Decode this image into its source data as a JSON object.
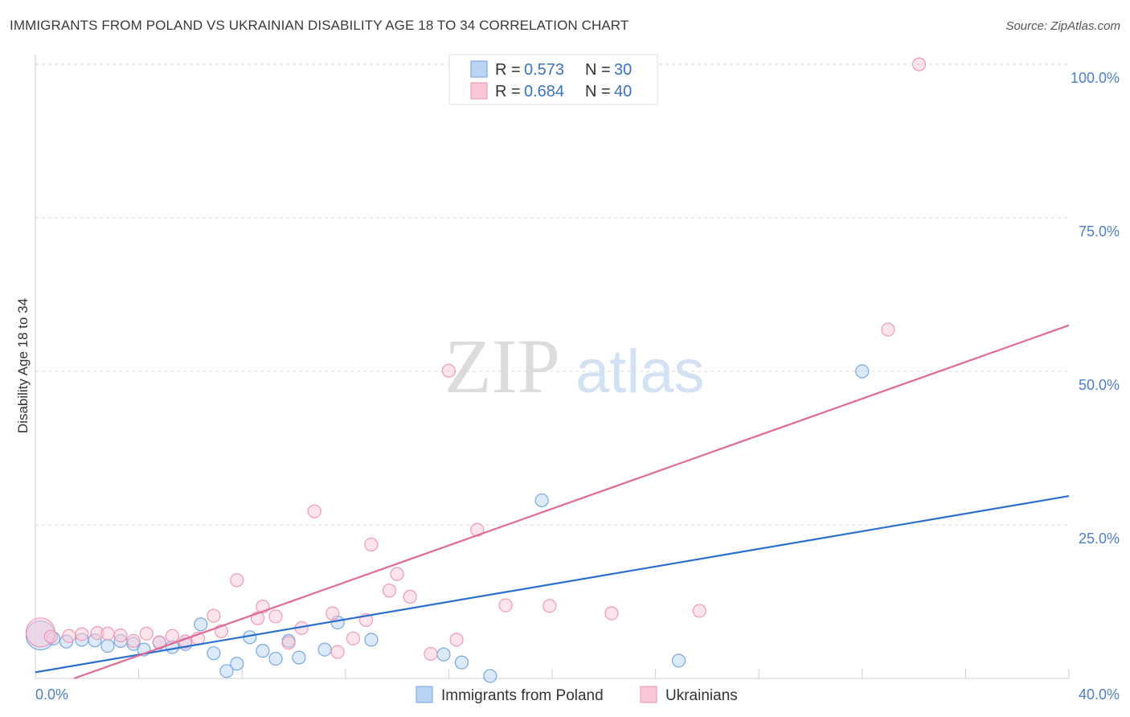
{
  "header": {
    "title": "IMMIGRANTS FROM POLAND VS UKRAINIAN DISABILITY AGE 18 TO 34 CORRELATION CHART",
    "source": "Source: ZipAtlas.com"
  },
  "watermark": {
    "zip": "ZIP",
    "atlas": "atlas"
  },
  "legend_top": [
    {
      "r_label": "R = ",
      "r_value": "0.573",
      "n_label": "N = ",
      "n_value": "30",
      "color": "#a9c8f0"
    },
    {
      "r_label": "R = ",
      "r_value": "0.684",
      "n_label": "N = ",
      "n_value": "40",
      "color": "#f7b9cc"
    }
  ],
  "legend_bottom": [
    {
      "label": "Immigrants from Poland",
      "color": "#a9c8f0"
    },
    {
      "label": "Ukrainians",
      "color": "#f7b9cc"
    }
  ],
  "chart_data": {
    "type": "scatter",
    "xlabel": "",
    "ylabel": "Disability Age 18 to 34",
    "xlim": [
      0,
      40
    ],
    "ylim": [
      0,
      100
    ],
    "x_ticks": [
      "0.0%",
      "40.0%"
    ],
    "y_ticks": [
      {
        "value": 25,
        "label": "25.0%"
      },
      {
        "value": 50,
        "label": "50.0%"
      },
      {
        "value": 75,
        "label": "75.0%"
      },
      {
        "value": 100,
        "label": "100.0%"
      }
    ],
    "grid": true,
    "series": [
      {
        "name": "Immigrants from Poland",
        "color": "#6a9fe0",
        "fill": "#b9d3f3",
        "trend": {
          "x": [
            0,
            40
          ],
          "y": [
            1.0,
            29.7
          ],
          "color": "#2a6fd0"
        },
        "points": [
          {
            "x": 0.2,
            "y": 7.0,
            "big": true
          },
          {
            "x": 0.7,
            "y": 6.5
          },
          {
            "x": 1.2,
            "y": 6.0
          },
          {
            "x": 1.8,
            "y": 6.3
          },
          {
            "x": 2.3,
            "y": 6.2
          },
          {
            "x": 2.8,
            "y": 5.3
          },
          {
            "x": 3.3,
            "y": 6.1
          },
          {
            "x": 3.8,
            "y": 5.6
          },
          {
            "x": 4.2,
            "y": 4.7
          },
          {
            "x": 4.8,
            "y": 5.8
          },
          {
            "x": 5.3,
            "y": 5.1
          },
          {
            "x": 5.8,
            "y": 5.6
          },
          {
            "x": 6.4,
            "y": 8.8
          },
          {
            "x": 6.9,
            "y": 4.1
          },
          {
            "x": 7.4,
            "y": 1.2
          },
          {
            "x": 7.8,
            "y": 2.4
          },
          {
            "x": 8.3,
            "y": 6.7
          },
          {
            "x": 8.8,
            "y": 4.5
          },
          {
            "x": 9.3,
            "y": 3.2
          },
          {
            "x": 9.8,
            "y": 6.1
          },
          {
            "x": 10.2,
            "y": 3.4
          },
          {
            "x": 11.2,
            "y": 4.7
          },
          {
            "x": 11.7,
            "y": 9.1
          },
          {
            "x": 13.0,
            "y": 6.3
          },
          {
            "x": 15.8,
            "y": 3.9
          },
          {
            "x": 16.5,
            "y": 2.6
          },
          {
            "x": 17.6,
            "y": 0.4
          },
          {
            "x": 19.6,
            "y": 29.0
          },
          {
            "x": 24.9,
            "y": 2.9
          },
          {
            "x": 32.0,
            "y": 50.0
          }
        ]
      },
      {
        "name": "Ukrainians",
        "color": "#ee8fab",
        "fill": "#f9cad8",
        "trend": {
          "x": [
            1.5,
            40
          ],
          "y": [
            0,
            57.5
          ],
          "color": "#e06a93"
        },
        "points": [
          {
            "x": 0.2,
            "y": 7.5,
            "big": true
          },
          {
            "x": 0.6,
            "y": 6.8
          },
          {
            "x": 1.3,
            "y": 6.9
          },
          {
            "x": 1.8,
            "y": 7.2
          },
          {
            "x": 2.4,
            "y": 7.4
          },
          {
            "x": 2.8,
            "y": 7.3
          },
          {
            "x": 3.3,
            "y": 7.0
          },
          {
            "x": 3.8,
            "y": 6.1
          },
          {
            "x": 4.3,
            "y": 7.3
          },
          {
            "x": 4.8,
            "y": 5.9
          },
          {
            "x": 5.3,
            "y": 6.9
          },
          {
            "x": 5.8,
            "y": 6.0
          },
          {
            "x": 6.3,
            "y": 6.5
          },
          {
            "x": 6.9,
            "y": 10.2
          },
          {
            "x": 7.2,
            "y": 7.7
          },
          {
            "x": 7.8,
            "y": 16.0
          },
          {
            "x": 8.6,
            "y": 9.8
          },
          {
            "x": 8.8,
            "y": 11.7
          },
          {
            "x": 9.3,
            "y": 10.1
          },
          {
            "x": 9.8,
            "y": 5.8
          },
          {
            "x": 10.3,
            "y": 8.2
          },
          {
            "x": 10.8,
            "y": 27.2
          },
          {
            "x": 11.5,
            "y": 10.6
          },
          {
            "x": 11.7,
            "y": 4.3
          },
          {
            "x": 12.3,
            "y": 6.5
          },
          {
            "x": 12.8,
            "y": 9.5
          },
          {
            "x": 13.0,
            "y": 21.8
          },
          {
            "x": 13.7,
            "y": 14.3
          },
          {
            "x": 14.0,
            "y": 17.0
          },
          {
            "x": 14.5,
            "y": 13.3
          },
          {
            "x": 15.3,
            "y": 4.0
          },
          {
            "x": 16.0,
            "y": 50.1
          },
          {
            "x": 16.3,
            "y": 6.3
          },
          {
            "x": 17.1,
            "y": 24.2
          },
          {
            "x": 18.2,
            "y": 11.9
          },
          {
            "x": 19.9,
            "y": 11.8
          },
          {
            "x": 22.3,
            "y": 10.6
          },
          {
            "x": 25.7,
            "y": 11.0
          },
          {
            "x": 33.0,
            "y": 56.8
          },
          {
            "x": 34.2,
            "y": 100.0
          }
        ]
      }
    ]
  }
}
